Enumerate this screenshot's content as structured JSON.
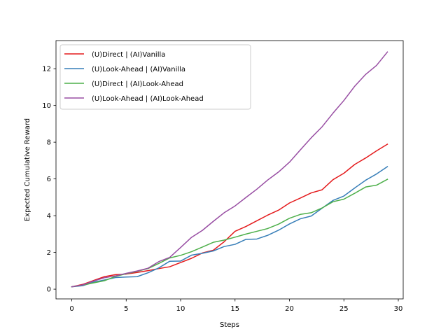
{
  "chart_data": {
    "type": "line",
    "title": "",
    "xlabel": "Steps",
    "ylabel": "Expected Cumulative Reward",
    "xlim": [
      -1.45,
      30.45
    ],
    "ylim": [
      -0.53,
      13.53
    ],
    "xticks": [
      0,
      5,
      10,
      15,
      20,
      25,
      30
    ],
    "yticks": [
      0,
      2,
      4,
      6,
      8,
      10,
      12
    ],
    "grid": false,
    "legend_position": "upper-left",
    "x": [
      0,
      1,
      2,
      3,
      4,
      5,
      6,
      7,
      8,
      9,
      10,
      11,
      12,
      13,
      14,
      15,
      16,
      17,
      18,
      19,
      20,
      21,
      22,
      23,
      24,
      25,
      26,
      27,
      28,
      29
    ],
    "series": [
      {
        "name": "(U)Direct | (AI)Vanilla",
        "color": "#e41a1c",
        "values": [
          0.13,
          0.26,
          0.47,
          0.68,
          0.79,
          0.82,
          0.91,
          1.01,
          1.12,
          1.22,
          1.45,
          1.68,
          1.97,
          2.12,
          2.58,
          3.15,
          3.41,
          3.72,
          4.03,
          4.3,
          4.69,
          4.96,
          5.24,
          5.41,
          5.96,
          6.31,
          6.79,
          7.14,
          7.53,
          7.89
        ]
      },
      {
        "name": "(U)Look-Ahead | (AI)Vanilla",
        "color": "#377eb8",
        "values": [
          0.13,
          0.19,
          0.38,
          0.5,
          0.63,
          0.66,
          0.68,
          0.89,
          1.16,
          1.52,
          1.53,
          1.85,
          1.95,
          2.08,
          2.32,
          2.44,
          2.71,
          2.73,
          2.93,
          3.21,
          3.55,
          3.83,
          3.98,
          4.41,
          4.83,
          5.07,
          5.51,
          5.93,
          6.27,
          6.67
        ]
      },
      {
        "name": "(U)Direct | (AI)Look-Ahead",
        "color": "#4daf4a",
        "values": [
          0.13,
          0.22,
          0.34,
          0.46,
          0.69,
          0.84,
          0.97,
          1.12,
          1.4,
          1.7,
          1.84,
          2.04,
          2.29,
          2.55,
          2.67,
          2.83,
          3.0,
          3.15,
          3.3,
          3.54,
          3.86,
          4.07,
          4.16,
          4.42,
          4.76,
          4.9,
          5.22,
          5.56,
          5.66,
          5.98
        ]
      },
      {
        "name": "(U)Look-Ahead | (AI)Look-Ahead",
        "color": "#984ea3",
        "values": [
          0.13,
          0.23,
          0.44,
          0.62,
          0.72,
          0.86,
          0.99,
          1.14,
          1.5,
          1.73,
          2.27,
          2.82,
          3.2,
          3.69,
          4.16,
          4.53,
          4.99,
          5.44,
          5.94,
          6.38,
          6.91,
          7.58,
          8.24,
          8.84,
          9.58,
          10.27,
          11.05,
          11.69,
          12.18,
          12.91
        ]
      }
    ]
  }
}
